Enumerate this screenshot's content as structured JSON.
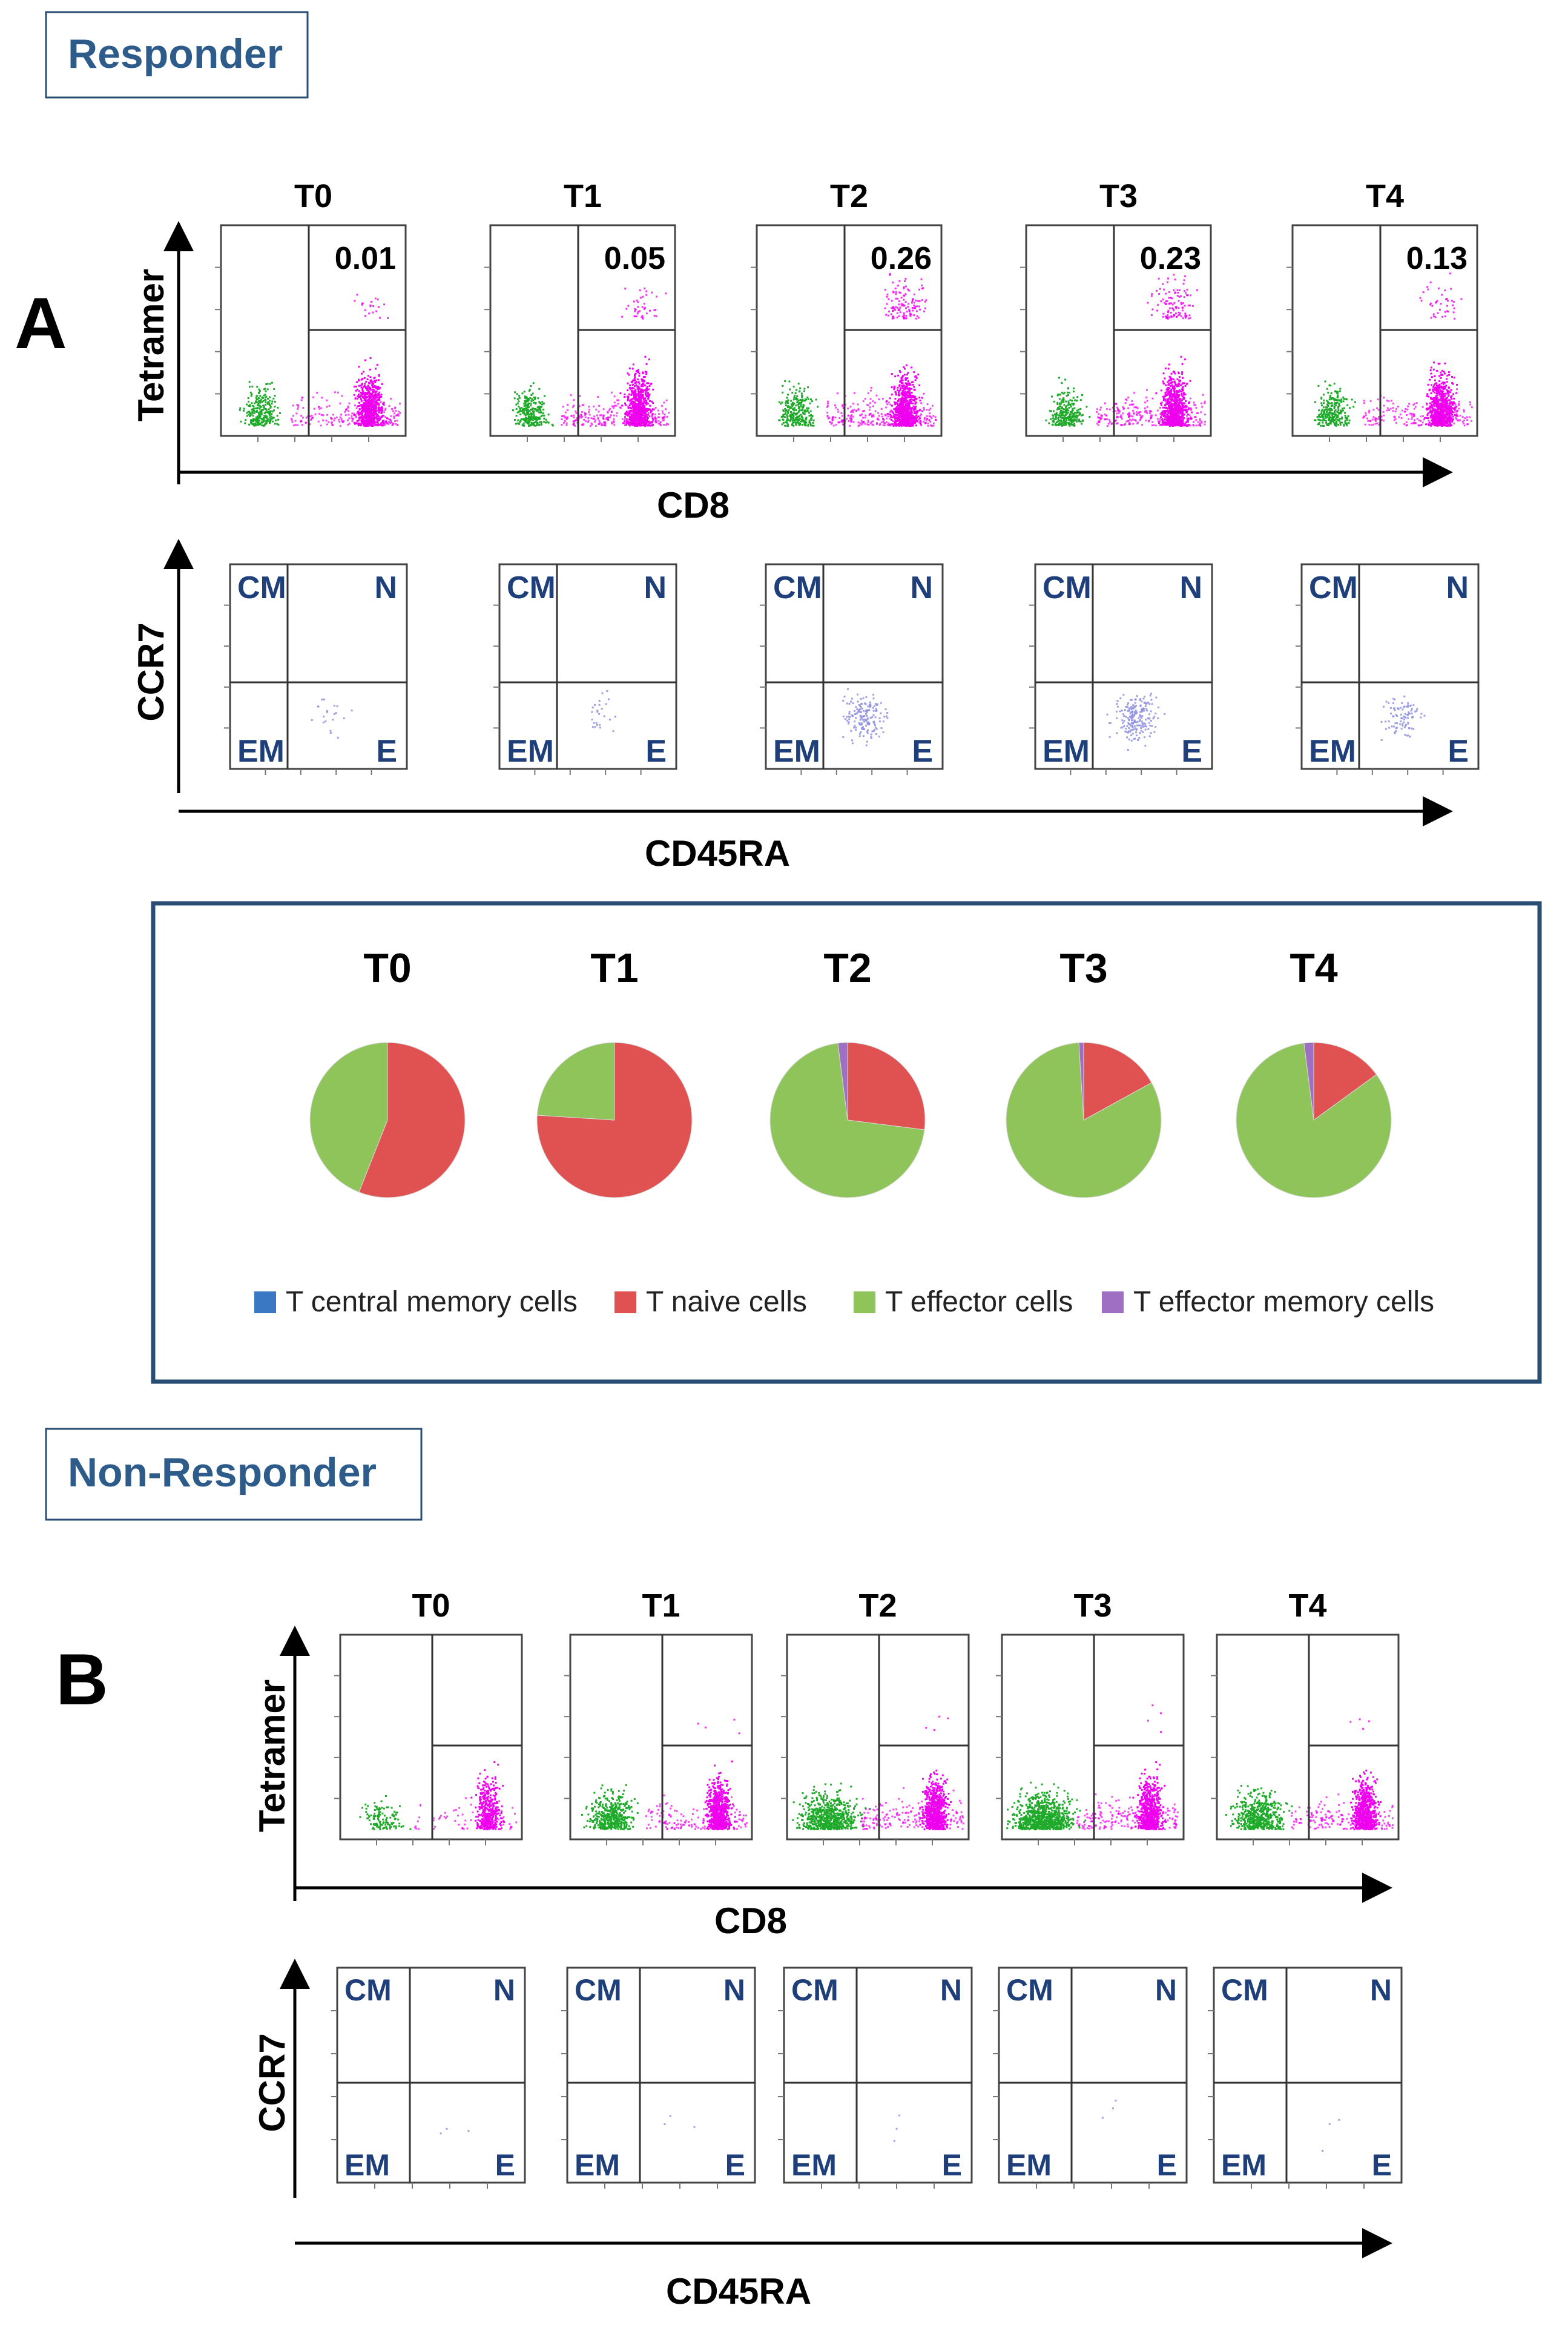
{
  "colors": {
    "header_text": "#2e5c8a",
    "quadrant_text": "#1f3f7a",
    "box_border": "#2a4d73",
    "cd8_negative": "#1faa2a",
    "tetramer_positive": "#ee00ee",
    "ccr7_events": "#8f8fe0",
    "pie_colors": {
      "cm": "#3a78c4",
      "n": "#e05252",
      "e": "#8fc45a",
      "em": "#9e6fc3"
    }
  },
  "panel_a": {
    "panel_letter": "A",
    "group_label": "Responder",
    "timepoints": [
      "T0",
      "T1",
      "T2",
      "T3",
      "T4"
    ],
    "tetramer_percent": [
      "0.01",
      "0.05",
      "0.26",
      "0.23",
      "0.13"
    ],
    "tetramer_ylabel": "Tetramer",
    "cd8_xlabel": "CD8",
    "ccr7_ylabel": "CCR7",
    "cd45ra_xlabel": "CD45RA"
  },
  "quadrant_labels": {
    "cm": "CM",
    "n": "N",
    "em": "EM",
    "e": "E"
  },
  "chart_data": {
    "type": "pie",
    "title": "",
    "categories": [
      "T central memory  cells",
      "T naive cells",
      "T effector cells",
      "T effector memory  cells"
    ],
    "series": [
      {
        "name": "T0",
        "values": [
          0,
          56,
          44,
          0
        ]
      },
      {
        "name": "T1",
        "values": [
          0,
          76,
          24,
          0
        ]
      },
      {
        "name": "T2",
        "values": [
          0,
          27,
          71,
          2
        ]
      },
      {
        "name": "T3",
        "values": [
          0,
          17,
          82,
          1
        ]
      },
      {
        "name": "T4",
        "values": [
          0,
          15,
          83,
          2
        ]
      }
    ],
    "legend_position": "bottom"
  },
  "panel_b": {
    "panel_letter": "B",
    "group_label": "Non-Responder",
    "timepoints": [
      "T0",
      "T1",
      "T2",
      "T3",
      "T4"
    ],
    "tetramer_ylabel": "Tetramer",
    "cd8_xlabel": "CD8",
    "ccr7_ylabel": "CCR7",
    "cd45ra_xlabel": "CD45RA"
  }
}
